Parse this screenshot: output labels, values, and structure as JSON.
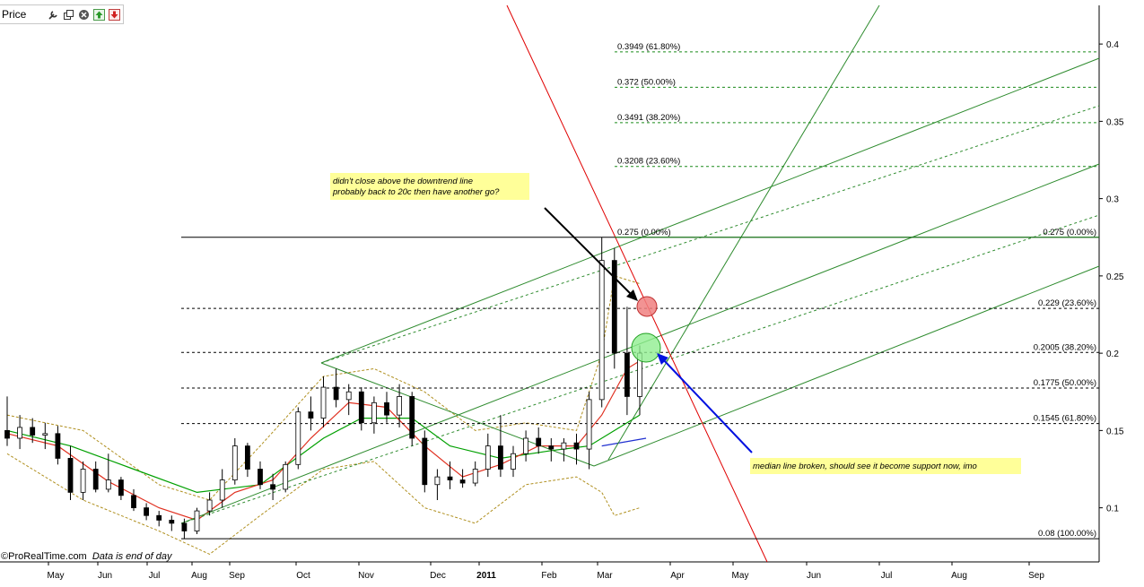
{
  "toolbar": {
    "label": "Price",
    "icons": [
      "wrench-icon",
      "window-icon",
      "close-icon",
      "scroll-up-icon",
      "scroll-down-icon"
    ]
  },
  "footer": {
    "brand": "©ProRealTime.com",
    "note": "Data is end of day"
  },
  "colors": {
    "background": "#ffffff",
    "candle_up": "#ffffff",
    "candle_down": "#000000",
    "ma_fast": "#e03020",
    "ma_slow": "#00a000",
    "bollinger": "#b09020",
    "pitchfork": "#2e8b2e",
    "downtrend": "#e00000",
    "fib_lines": "#000000",
    "arrow_black": "#000000",
    "arrow_blue": "#0010e0",
    "note_bg": "#ffff99",
    "circle_red": "#f08080",
    "circle_green": "#90ee90"
  },
  "chart_data": {
    "type": "candlestick",
    "x_axis": {
      "labels": [
        "May",
        "Jun",
        "Jul",
        "Aug",
        "Sep",
        "Oct",
        "Nov",
        "Dec",
        "2011",
        "Feb",
        "Mar",
        "Apr",
        "May",
        "Jun",
        "Jul",
        "Aug",
        "Sep"
      ]
    },
    "y_axis": {
      "ticks": [
        "0.1",
        "0.15",
        "0.2",
        "0.25",
        "0.3",
        "0.35",
        "0.4"
      ],
      "range": [
        0.065,
        0.425
      ],
      "position": "right"
    },
    "price_series": [
      {
        "date": "2010-04-15",
        "o": 0.15,
        "h": 0.172,
        "l": 0.14,
        "c": 0.145
      },
      {
        "date": "2010-04-22",
        "o": 0.145,
        "h": 0.16,
        "l": 0.138,
        "c": 0.152
      },
      {
        "date": "2010-04-29",
        "o": 0.152,
        "h": 0.158,
        "l": 0.142,
        "c": 0.147
      },
      {
        "date": "2010-05-06",
        "o": 0.147,
        "h": 0.155,
        "l": 0.138,
        "c": 0.148
      },
      {
        "date": "2010-05-13",
        "o": 0.148,
        "h": 0.153,
        "l": 0.128,
        "c": 0.132
      },
      {
        "date": "2010-05-20",
        "o": 0.132,
        "h": 0.14,
        "l": 0.105,
        "c": 0.11
      },
      {
        "date": "2010-05-27",
        "o": 0.11,
        "h": 0.13,
        "l": 0.105,
        "c": 0.125
      },
      {
        "date": "2010-06-03",
        "o": 0.125,
        "h": 0.13,
        "l": 0.11,
        "c": 0.112
      },
      {
        "date": "2010-06-10",
        "o": 0.112,
        "h": 0.135,
        "l": 0.11,
        "c": 0.118
      },
      {
        "date": "2010-06-17",
        "o": 0.118,
        "h": 0.12,
        "l": 0.105,
        "c": 0.108
      },
      {
        "date": "2010-06-24",
        "o": 0.108,
        "h": 0.112,
        "l": 0.098,
        "c": 0.1
      },
      {
        "date": "2010-07-01",
        "o": 0.1,
        "h": 0.103,
        "l": 0.092,
        "c": 0.095
      },
      {
        "date": "2010-07-08",
        "o": 0.095,
        "h": 0.098,
        "l": 0.088,
        "c": 0.092
      },
      {
        "date": "2010-07-15",
        "o": 0.092,
        "h": 0.095,
        "l": 0.085,
        "c": 0.09
      },
      {
        "date": "2010-07-22",
        "o": 0.09,
        "h": 0.093,
        "l": 0.08,
        "c": 0.085
      },
      {
        "date": "2010-07-29",
        "o": 0.085,
        "h": 0.1,
        "l": 0.083,
        "c": 0.098
      },
      {
        "date": "2010-08-05",
        "o": 0.098,
        "h": 0.11,
        "l": 0.095,
        "c": 0.105
      },
      {
        "date": "2010-08-12",
        "o": 0.105,
        "h": 0.125,
        "l": 0.1,
        "c": 0.118
      },
      {
        "date": "2010-08-19",
        "o": 0.118,
        "h": 0.145,
        "l": 0.115,
        "c": 0.14
      },
      {
        "date": "2010-08-26",
        "o": 0.14,
        "h": 0.142,
        "l": 0.12,
        "c": 0.125
      },
      {
        "date": "2010-09-02",
        "o": 0.125,
        "h": 0.13,
        "l": 0.112,
        "c": 0.115
      },
      {
        "date": "2010-09-09",
        "o": 0.115,
        "h": 0.122,
        "l": 0.105,
        "c": 0.112
      },
      {
        "date": "2010-09-16",
        "o": 0.112,
        "h": 0.13,
        "l": 0.11,
        "c": 0.128
      },
      {
        "date": "2010-09-23",
        "o": 0.128,
        "h": 0.165,
        "l": 0.125,
        "c": 0.162
      },
      {
        "date": "2010-09-30",
        "o": 0.162,
        "h": 0.172,
        "l": 0.15,
        "c": 0.158
      },
      {
        "date": "2010-10-07",
        "o": 0.158,
        "h": 0.185,
        "l": 0.152,
        "c": 0.178
      },
      {
        "date": "2010-10-14",
        "o": 0.178,
        "h": 0.19,
        "l": 0.165,
        "c": 0.17
      },
      {
        "date": "2010-10-21",
        "o": 0.17,
        "h": 0.18,
        "l": 0.16,
        "c": 0.175
      },
      {
        "date": "2010-10-28",
        "o": 0.175,
        "h": 0.178,
        "l": 0.15,
        "c": 0.155
      },
      {
        "date": "2010-11-04",
        "o": 0.155,
        "h": 0.172,
        "l": 0.148,
        "c": 0.168
      },
      {
        "date": "2010-11-11",
        "o": 0.168,
        "h": 0.175,
        "l": 0.155,
        "c": 0.16
      },
      {
        "date": "2010-11-18",
        "o": 0.16,
        "h": 0.18,
        "l": 0.152,
        "c": 0.172
      },
      {
        "date": "2010-11-25",
        "o": 0.172,
        "h": 0.175,
        "l": 0.14,
        "c": 0.145
      },
      {
        "date": "2010-12-02",
        "o": 0.145,
        "h": 0.15,
        "l": 0.11,
        "c": 0.115
      },
      {
        "date": "2010-12-09",
        "o": 0.115,
        "h": 0.125,
        "l": 0.105,
        "c": 0.12
      },
      {
        "date": "2010-12-16",
        "o": 0.12,
        "h": 0.13,
        "l": 0.112,
        "c": 0.118
      },
      {
        "date": "2010-12-23",
        "o": 0.118,
        "h": 0.125,
        "l": 0.113,
        "c": 0.116
      },
      {
        "date": "2010-12-30",
        "o": 0.116,
        "h": 0.13,
        "l": 0.114,
        "c": 0.125
      },
      {
        "date": "2011-01-06",
        "o": 0.125,
        "h": 0.148,
        "l": 0.12,
        "c": 0.14
      },
      {
        "date": "2011-01-13",
        "o": 0.14,
        "h": 0.16,
        "l": 0.12,
        "c": 0.125
      },
      {
        "date": "2011-01-20",
        "o": 0.125,
        "h": 0.14,
        "l": 0.12,
        "c": 0.135
      },
      {
        "date": "2011-01-27",
        "o": 0.135,
        "h": 0.15,
        "l": 0.13,
        "c": 0.145
      },
      {
        "date": "2011-02-03",
        "o": 0.145,
        "h": 0.152,
        "l": 0.135,
        "c": 0.14
      },
      {
        "date": "2011-02-10",
        "o": 0.14,
        "h": 0.145,
        "l": 0.13,
        "c": 0.138
      },
      {
        "date": "2011-02-17",
        "o": 0.138,
        "h": 0.145,
        "l": 0.13,
        "c": 0.142
      },
      {
        "date": "2011-02-24",
        "o": 0.142,
        "h": 0.148,
        "l": 0.128,
        "c": 0.138
      },
      {
        "date": "2011-03-01",
        "o": 0.138,
        "h": 0.175,
        "l": 0.125,
        "c": 0.17
      },
      {
        "date": "2011-03-04",
        "o": 0.17,
        "h": 0.275,
        "l": 0.165,
        "c": 0.26
      },
      {
        "date": "2011-03-08",
        "o": 0.26,
        "h": 0.268,
        "l": 0.19,
        "c": 0.2
      },
      {
        "date": "2011-03-12",
        "o": 0.2,
        "h": 0.23,
        "l": 0.16,
        "c": 0.172
      },
      {
        "date": "2011-03-16",
        "o": 0.172,
        "h": 0.205,
        "l": 0.16,
        "c": 0.2
      }
    ],
    "indicators": {
      "ma_fast": [
        [
          0,
          0.148
        ],
        [
          4,
          0.14
        ],
        [
          8,
          0.117
        ],
        [
          12,
          0.1
        ],
        [
          15,
          0.092
        ],
        [
          18,
          0.11
        ],
        [
          21,
          0.118
        ],
        [
          24,
          0.145
        ],
        [
          27,
          0.168
        ],
        [
          30,
          0.165
        ],
        [
          33,
          0.14
        ],
        [
          36,
          0.12
        ],
        [
          39,
          0.128
        ],
        [
          42,
          0.14
        ],
        [
          45,
          0.14
        ],
        [
          47,
          0.16
        ],
        [
          49,
          0.19
        ],
        [
          50,
          0.195
        ]
      ],
      "ma_slow": [
        [
          0,
          0.15
        ],
        [
          5,
          0.14
        ],
        [
          10,
          0.125
        ],
        [
          15,
          0.11
        ],
        [
          20,
          0.115
        ],
        [
          25,
          0.145
        ],
        [
          28,
          0.158
        ],
        [
          32,
          0.158
        ],
        [
          35,
          0.14
        ],
        [
          39,
          0.132
        ],
        [
          43,
          0.137
        ],
        [
          46,
          0.14
        ],
        [
          48,
          0.15
        ],
        [
          50,
          0.16
        ]
      ],
      "bollinger_upper": [
        [
          0,
          0.16
        ],
        [
          6,
          0.15
        ],
        [
          12,
          0.115
        ],
        [
          16,
          0.105
        ],
        [
          20,
          0.14
        ],
        [
          25,
          0.185
        ],
        [
          29,
          0.19
        ],
        [
          33,
          0.175
        ],
        [
          37,
          0.15
        ],
        [
          41,
          0.155
        ],
        [
          45,
          0.15
        ],
        [
          47,
          0.2
        ],
        [
          48,
          0.25
        ],
        [
          50,
          0.245
        ]
      ],
      "bollinger_lower": [
        [
          0,
          0.135
        ],
        [
          6,
          0.105
        ],
        [
          12,
          0.085
        ],
        [
          16,
          0.07
        ],
        [
          20,
          0.095
        ],
        [
          25,
          0.125
        ],
        [
          29,
          0.13
        ],
        [
          33,
          0.1
        ],
        [
          37,
          0.09
        ],
        [
          41,
          0.115
        ],
        [
          45,
          0.12
        ],
        [
          47,
          0.11
        ],
        [
          48,
          0.095
        ],
        [
          50,
          0.1
        ]
      ]
    },
    "fib_retracement_lower": {
      "levels": [
        {
          "value": 0.275,
          "label": "0.275 (0.00%)"
        },
        {
          "value": 0.229,
          "label": "0.229 (23.60%)"
        },
        {
          "value": 0.2005,
          "label": "0.2005 (38.20%)"
        },
        {
          "value": 0.1775,
          "label": "0.1775 (50.00%)"
        },
        {
          "value": 0.1545,
          "label": "0.1545 (61.80%)"
        },
        {
          "value": 0.08,
          "label": "0.08 (100.00%)"
        }
      ]
    },
    "fib_retracement_upper": {
      "levels": [
        {
          "value": 0.3949,
          "label": "0.3949 (61.80%)"
        },
        {
          "value": 0.372,
          "label": "0.372 (50.00%)"
        },
        {
          "value": 0.3491,
          "label": "0.3491 (38.20%)"
        },
        {
          "value": 0.3208,
          "label": "0.3208 (23.60%)"
        },
        {
          "value": 0.275,
          "label": "0.275 (0.00%)"
        }
      ]
    },
    "annotations": [
      {
        "id": "note-downtrend",
        "text": [
          "didn't close above the downtrend line",
          "probably back to 20c then have another go?"
        ]
      },
      {
        "id": "note-median",
        "text": [
          "median line broken, should see it become support now, imo"
        ]
      }
    ]
  }
}
